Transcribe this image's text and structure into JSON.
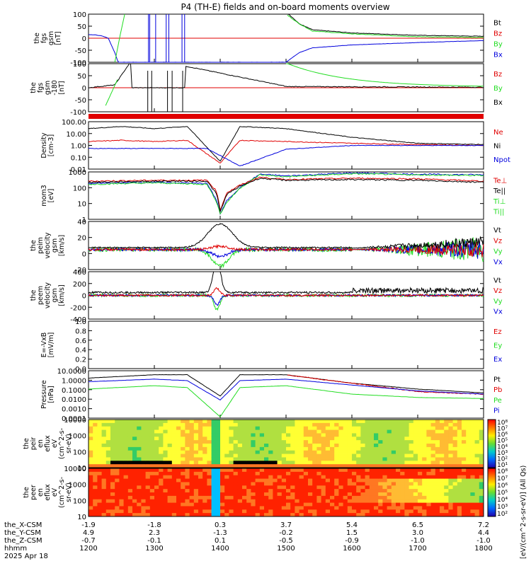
{
  "title": "P4 (TH-E) fields and on-board moments overview",
  "colors": {
    "black": "#000000",
    "red": "#e00000",
    "green": "#22dd22",
    "blue": "#0000dd"
  },
  "panels": [
    {
      "id": "fgs",
      "ylabel": [
        "the",
        "fgs",
        "gsm",
        "[nT]"
      ],
      "ticks": [
        "100",
        "50",
        "0",
        "-50",
        "-100"
      ],
      "legend": [
        {
          "t": "Bt",
          "c": "black"
        },
        {
          "t": "Bz",
          "c": "red"
        },
        {
          "t": "By",
          "c": "green"
        },
        {
          "t": "Bx",
          "c": "blue"
        }
      ]
    },
    {
      "id": "fgs_dsl",
      "ylabel": [
        "the",
        "fgs",
        "gsm",
        "-180",
        "[nT]"
      ],
      "ticks": [
        "100",
        "50",
        "0",
        "-50",
        "-100"
      ],
      "legend": [
        {
          "t": "Bz",
          "c": "red"
        },
        {
          "t": "By",
          "c": "green"
        },
        {
          "t": "Bx",
          "c": "black"
        }
      ]
    },
    {
      "id": "density",
      "ylabel": [
        "Density",
        "[cm-3]"
      ],
      "ticks": [
        "100.00",
        "10.00",
        "1.00",
        "0.10",
        "0.01"
      ],
      "legend": [
        {
          "t": "Ne",
          "c": "red"
        },
        {
          "t": "Ni",
          "c": "black"
        },
        {
          "t": "Npot",
          "c": "blue"
        }
      ]
    },
    {
      "id": "temp",
      "ylabel": [
        "mom3",
        "[eV]"
      ],
      "ticks": [
        "1000",
        "100",
        "10",
        "1"
      ],
      "legend": [
        {
          "t": "Te⊥",
          "c": "red"
        },
        {
          "t": "Te||",
          "c": "black"
        },
        {
          "t": "Ti⊥",
          "c": "green"
        },
        {
          "t": "Ti||",
          "c": "green"
        }
      ]
    },
    {
      "id": "vi",
      "ylabel": [
        "the",
        "peim",
        "velocity",
        "gsm",
        "[km/s]"
      ],
      "ticks": [
        "40",
        "20",
        "0",
        "-20"
      ],
      "legend": [
        {
          "t": "Vt",
          "c": "black"
        },
        {
          "t": "Vz",
          "c": "red"
        },
        {
          "t": "Vy",
          "c": "green"
        },
        {
          "t": "Vx",
          "c": "blue"
        }
      ]
    },
    {
      "id": "ve",
      "ylabel": [
        "the",
        "peem",
        "velocity",
        "gsm",
        "[km/s]"
      ],
      "ticks": [
        "400",
        "200",
        "0",
        "-200",
        "-400"
      ],
      "legend": [
        {
          "t": "Vt",
          "c": "black"
        },
        {
          "t": "Vz",
          "c": "red"
        },
        {
          "t": "Vy",
          "c": "green"
        },
        {
          "t": "Vx",
          "c": "blue"
        }
      ]
    },
    {
      "id": "efield",
      "ylabel": [
        "E=-VxB",
        "[mV/m]"
      ],
      "ticks": [
        "1.0",
        "0.8",
        "0.6",
        "0.4",
        "0.2",
        "0.0"
      ],
      "legend": [
        {
          "t": "Ez",
          "c": "red"
        },
        {
          "t": "Ey",
          "c": "green"
        },
        {
          "t": "Ex",
          "c": "blue"
        }
      ]
    },
    {
      "id": "pressure",
      "ylabel": [
        "Pressure",
        "[nPa]"
      ],
      "ticks": [
        "10.0000",
        "1.0000",
        "0.1000",
        "0.0100",
        "0.0010",
        "0.0001"
      ],
      "legend": [
        {
          "t": "Pt",
          "c": "black"
        },
        {
          "t": "Pb",
          "c": "red"
        },
        {
          "t": "Pe",
          "c": "green"
        },
        {
          "t": "Pi",
          "c": "blue"
        }
      ]
    },
    {
      "id": "peir",
      "ylabel": [
        "the",
        "peir",
        "en",
        "eflux",
        "eV",
        "(cm^2-s-",
        "sr-eV)"
      ],
      "ticks": [
        "10000",
        "1000",
        "100",
        "10"
      ]
    },
    {
      "id": "peer",
      "ylabel": [
        "the",
        "peer",
        "en",
        "eflux",
        "eV",
        "(cm^2-s-",
        "sr-eV)"
      ],
      "ticks": [
        "10000",
        "1000",
        "100",
        "10"
      ]
    }
  ],
  "colorbar": {
    "label": "[eV/(cm^2-s-sr-eV)] (All Qs)",
    "ticks_ion": [
      "10⁸",
      "10⁷",
      "10⁶",
      "10⁵",
      "10⁴",
      "10³",
      "10²",
      "10¹"
    ],
    "ticks_ele": [
      "10⁸",
      "10⁷",
      "10⁶",
      "10⁵",
      "10⁴",
      "10³",
      "10²"
    ]
  },
  "xaxis": {
    "row_labels": [
      "the_X-CSM",
      "the_Y-CSM",
      "the_Z-CSM",
      "hhmm",
      "2025 Apr 18"
    ],
    "columns": [
      {
        "x": "-1.9",
        "y": "4.9",
        "z": "-0.7",
        "t": "1200"
      },
      {
        "x": "-1.8",
        "y": "2.3",
        "z": "-0.1",
        "t": "1300"
      },
      {
        "x": "0.3",
        "y": "-1.3",
        "z": "0.1",
        "t": "1400"
      },
      {
        "x": "3.7",
        "y": "-0.2",
        "z": "-0.5",
        "t": "1500"
      },
      {
        "x": "5.4",
        "y": "1.5",
        "z": "-0.9",
        "t": "1600"
      },
      {
        "x": "6.5",
        "y": "3.0",
        "z": "-1.0",
        "t": "1700"
      },
      {
        "x": "7.2",
        "y": "4.4",
        "z": "-1.0",
        "t": "1800"
      }
    ]
  },
  "chart_data": {
    "type": "line",
    "title": "P4 (TH-E) fields and on-board moments overview",
    "x_label": "hhmm",
    "x_ticks": [
      "1200",
      "1300",
      "1400",
      "1500",
      "1600",
      "1700",
      "1800"
    ],
    "date": "2025 Apr 18",
    "series": [
      {
        "name": "Bt",
        "panel": "fgs",
        "t": [
          1200,
          1230,
          1300,
          1320,
          1340,
          1400,
          1420,
          1440,
          1500,
          1520,
          1540,
          1600,
          1700,
          1800
        ],
        "values": [
          150,
          160,
          170,
          200,
          250,
          300,
          250,
          150,
          110,
          60,
          35,
          22,
          12,
          8
        ]
      },
      {
        "name": "Bx",
        "panel": "fgs",
        "t": [
          1200,
          1210,
          1220,
          1230,
          1240,
          1245,
          1500,
          1520,
          1540,
          1600,
          1700,
          1800
        ],
        "values": [
          15,
          14,
          10,
          0,
          -60,
          -100,
          -100,
          -60,
          -40,
          -28,
          -18,
          -10
        ]
      },
      {
        "name": "By",
        "panel": "fgs",
        "t": [
          1500,
          1520,
          1540,
          1600,
          1700,
          1800
        ],
        "values": [
          100,
          60,
          30,
          18,
          6,
          3
        ]
      },
      {
        "name": "Ni",
        "panel": "density",
        "t": [
          1200,
          1250,
          1300,
          1350,
          1400,
          1430,
          1500,
          1600,
          1700,
          1800
        ],
        "values": [
          60,
          100,
          60,
          100,
          0.03,
          100,
          60,
          8,
          2,
          1.5
        ]
      },
      {
        "name": "Ne",
        "panel": "density",
        "t": [
          1200,
          1250,
          1300,
          1350,
          1400,
          1430,
          1500,
          1600,
          1700,
          1800
        ],
        "values": [
          3,
          4,
          3,
          4,
          0.02,
          4,
          3,
          2,
          1.5,
          1.2
        ]
      },
      {
        "name": "Npot",
        "panel": "density",
        "t": [
          1200,
          1300,
          1380,
          1430,
          1500,
          1600,
          1700,
          1800
        ],
        "values": [
          0.6,
          0.6,
          0.6,
          0.01,
          0.5,
          1.2,
          1.2,
          1.2
        ]
      },
      {
        "name": "Pt",
        "panel": "pressure",
        "t": [
          1200,
          1300,
          1350,
          1400,
          1430,
          1500,
          1600,
          1700,
          1800
        ],
        "values": [
          4,
          10,
          10,
          0.03,
          10,
          10,
          1,
          0.2,
          0.07
        ]
      },
      {
        "name": "Pi",
        "panel": "pressure",
        "t": [
          1200,
          1300,
          1350,
          1400,
          1430,
          1500,
          1600,
          1700,
          1800
        ],
        "values": [
          1.5,
          3,
          2,
          0.01,
          2,
          3,
          0.6,
          0.12,
          0.05
        ]
      },
      {
        "name": "Pe",
        "panel": "pressure",
        "t": [
          1200,
          1300,
          1350,
          1400,
          1430,
          1500,
          1600,
          1700,
          1800
        ],
        "values": [
          0.2,
          0.5,
          0.3,
          0.0001,
          0.3,
          0.5,
          0.05,
          0.02,
          0.015
        ]
      }
    ]
  }
}
